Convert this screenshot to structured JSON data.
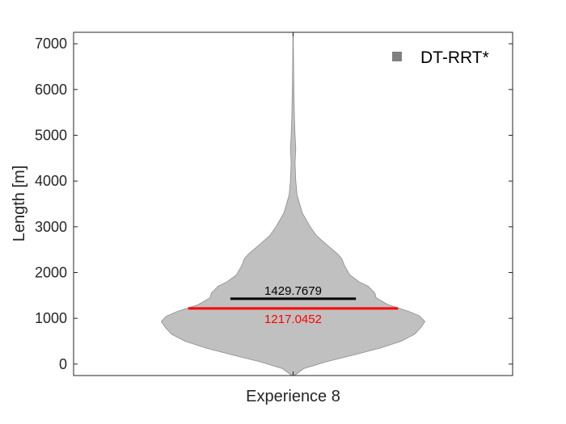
{
  "chart_data": {
    "type": "violin",
    "title": "",
    "xlabel": "",
    "ylabel": "Length [m]",
    "categories": [
      "Experience 8"
    ],
    "ylim": [
      -250,
      7250
    ],
    "yticks": [
      0,
      1000,
      2000,
      3000,
      4000,
      5000,
      6000,
      7000
    ],
    "ytick_labels": [
      "0",
      "1000",
      "2000",
      "3000",
      "4000",
      "5000",
      "6000",
      "7000"
    ],
    "grid": false,
    "legend_position": "top-right",
    "series": [
      {
        "name": "DT-RRT*",
        "category": "Experience 8",
        "color": "#c0c0c0",
        "legend_color": "#808080",
        "mean": 1429.7679,
        "median": 1217.0452,
        "mean_label": "1429.7679",
        "median_label": "1217.0452",
        "mean_color": "#000000",
        "median_color": "#ff0000",
        "range": [
          -250,
          7250
        ],
        "density_profile": [
          [
            -250,
            0.01
          ],
          [
            -100,
            0.08
          ],
          [
            50,
            0.25
          ],
          [
            200,
            0.46
          ],
          [
            350,
            0.66
          ],
          [
            500,
            0.82
          ],
          [
            650,
            0.92
          ],
          [
            800,
            0.97
          ],
          [
            930,
            1.0
          ],
          [
            1050,
            0.96
          ],
          [
            1150,
            0.88
          ],
          [
            1300,
            0.72
          ],
          [
            1450,
            0.63
          ],
          [
            1550,
            0.62
          ],
          [
            1700,
            0.57
          ],
          [
            1800,
            0.5
          ],
          [
            1950,
            0.43
          ],
          [
            2150,
            0.39
          ],
          [
            2300,
            0.37
          ],
          [
            2400,
            0.34
          ],
          [
            2600,
            0.26
          ],
          [
            2800,
            0.18
          ],
          [
            3000,
            0.13
          ],
          [
            3200,
            0.09
          ],
          [
            3300,
            0.07
          ],
          [
            3500,
            0.05
          ],
          [
            3700,
            0.03
          ],
          [
            4000,
            0.02
          ],
          [
            4400,
            0.015
          ],
          [
            4700,
            0.02
          ],
          [
            5000,
            0.015
          ],
          [
            5400,
            0.01
          ],
          [
            6000,
            0.006
          ],
          [
            6300,
            0.004
          ],
          [
            7000,
            0.002
          ],
          [
            7250,
            0.002
          ]
        ]
      }
    ]
  }
}
